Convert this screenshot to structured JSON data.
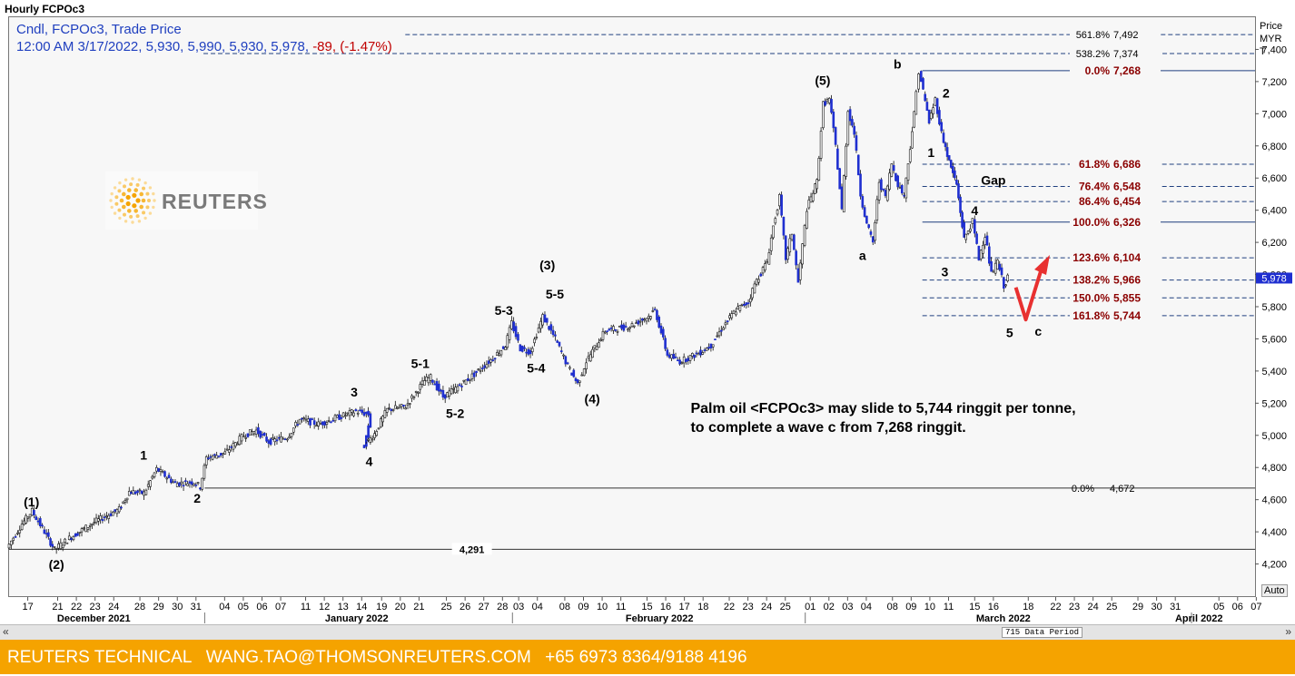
{
  "title": "Hourly FCPOc3",
  "legend": {
    "line1": "Cndl, FCPOc3, Trade Price",
    "datetime": "12:00 AM 3/17/2022,",
    "open": "5,930,",
    "high": "5,990,",
    "low": "5,930,",
    "close": "5,978,",
    "change": "-89,",
    "change_pct": "(-1.47%)"
  },
  "logo_text": "REUTERS",
  "yaxis": {
    "header": [
      "Price",
      "MYR",
      "T"
    ],
    "auto": "Auto"
  },
  "scrollbar": {
    "left": "«",
    "right": "»",
    "data_period": "715 Data Period"
  },
  "footer": {
    "brand": "REUTERS TECHNICAL",
    "email": "WANG.TAO@THOMSONREUTERS.COM",
    "phone": "+65 6973 8364/9188 4196"
  },
  "colors": {
    "candle": "#1f2fd0",
    "fib_text": "#8b0000",
    "arrow": "#e83030",
    "footer": "#f5a300"
  },
  "chart_data": {
    "type": "candlestick",
    "ylim": [
      4000,
      7600
    ],
    "yticks": [
      "4,200",
      "4,400",
      "4,600",
      "4,800",
      "5,000",
      "5,200",
      "5,400",
      "5,600",
      "5,800",
      "6,000",
      "6,200",
      "6,400",
      "6,600",
      "6,800",
      "7,000",
      "7,200",
      "7,400"
    ],
    "last_price": "5,978",
    "xticks": [
      {
        "l": "17",
        "x": 0.015
      },
      {
        "l": "21",
        "x": 0.039
      },
      {
        "l": "22",
        "x": 0.054
      },
      {
        "l": "23",
        "x": 0.069
      },
      {
        "l": "24",
        "x": 0.084
      },
      {
        "l": "28",
        "x": 0.105
      },
      {
        "l": "29",
        "x": 0.12
      },
      {
        "l": "30",
        "x": 0.135
      },
      {
        "l": "31",
        "x": 0.15
      },
      {
        "l": "04",
        "x": 0.173
      },
      {
        "l": "05",
        "x": 0.188
      },
      {
        "l": "06",
        "x": 0.203
      },
      {
        "l": "07",
        "x": 0.218
      },
      {
        "l": "11",
        "x": 0.238
      },
      {
        "l": "12",
        "x": 0.253
      },
      {
        "l": "13",
        "x": 0.268
      },
      {
        "l": "14",
        "x": 0.283
      },
      {
        "l": "19",
        "x": 0.299
      },
      {
        "l": "20",
        "x": 0.314
      },
      {
        "l": "21",
        "x": 0.329
      },
      {
        "l": "25",
        "x": 0.351
      },
      {
        "l": "26",
        "x": 0.366
      },
      {
        "l": "27",
        "x": 0.381
      },
      {
        "l": "28",
        "x": 0.396
      },
      {
        "l": "03",
        "x": 0.409
      },
      {
        "l": "04",
        "x": 0.424
      },
      {
        "l": "08",
        "x": 0.446
      },
      {
        "l": "09",
        "x": 0.461
      },
      {
        "l": "10",
        "x": 0.476
      },
      {
        "l": "11",
        "x": 0.491
      },
      {
        "l": "15",
        "x": 0.512
      },
      {
        "l": "16",
        "x": 0.527
      },
      {
        "l": "17",
        "x": 0.542
      },
      {
        "l": "18",
        "x": 0.557
      },
      {
        "l": "22",
        "x": 0.578
      },
      {
        "l": "23",
        "x": 0.593
      },
      {
        "l": "24",
        "x": 0.608
      },
      {
        "l": "25",
        "x": 0.623
      },
      {
        "l": "01",
        "x": 0.643
      },
      {
        "l": "02",
        "x": 0.658
      },
      {
        "l": "03",
        "x": 0.673
      },
      {
        "l": "04",
        "x": 0.688
      },
      {
        "l": "08",
        "x": 0.709
      },
      {
        "l": "09",
        "x": 0.724
      },
      {
        "l": "10",
        "x": 0.739
      },
      {
        "l": "11",
        "x": 0.754
      },
      {
        "l": "15",
        "x": 0.775
      },
      {
        "l": "16",
        "x": 0.79
      },
      {
        "l": "18",
        "x": 0.818
      },
      {
        "l": "22",
        "x": 0.84
      },
      {
        "l": "23",
        "x": 0.855
      },
      {
        "l": "24",
        "x": 0.87
      },
      {
        "l": "25",
        "x": 0.885
      },
      {
        "l": "29",
        "x": 0.906
      },
      {
        "l": "30",
        "x": 0.921
      },
      {
        "l": "31",
        "x": 0.936
      },
      {
        "l": "05",
        "x": 0.971
      },
      {
        "l": "06",
        "x": 0.986
      },
      {
        "l": "07",
        "x": 1.001
      }
    ],
    "months": [
      {
        "l": "December 2021",
        "x": 0.068
      },
      {
        "l": "January 2022",
        "x": 0.279
      },
      {
        "l": "February 2022",
        "x": 0.522
      },
      {
        "l": "March 2022",
        "x": 0.798
      },
      {
        "l": "April 2022",
        "x": 0.955
      }
    ],
    "month_dividers": [
      0.157,
      0.404,
      0.639,
      0.949
    ],
    "price_path": [
      [
        0,
        4300
      ],
      [
        0.012,
        4450
      ],
      [
        0.02,
        4530
      ],
      [
        0.03,
        4400
      ],
      [
        0.038,
        4290
      ],
      [
        0.05,
        4360
      ],
      [
        0.07,
        4460
      ],
      [
        0.09,
        4540
      ],
      [
        0.098,
        4650
      ],
      [
        0.11,
        4640
      ],
      [
        0.12,
        4790
      ],
      [
        0.135,
        4700
      ],
      [
        0.15,
        4710
      ],
      [
        0.155,
        4680
      ],
      [
        0.16,
        4860
      ],
      [
        0.175,
        4890
      ],
      [
        0.19,
        5000
      ],
      [
        0.2,
        5030
      ],
      [
        0.21,
        4960
      ],
      [
        0.225,
        4990
      ],
      [
        0.235,
        5100
      ],
      [
        0.25,
        5070
      ],
      [
        0.265,
        5110
      ],
      [
        0.28,
        5150
      ],
      [
        0.29,
        5130
      ],
      [
        0.285,
        4920
      ],
      [
        0.295,
        5010
      ],
      [
        0.305,
        5160
      ],
      [
        0.32,
        5180
      ],
      [
        0.335,
        5340
      ],
      [
        0.34,
        5360
      ],
      [
        0.35,
        5240
      ],
      [
        0.36,
        5290
      ],
      [
        0.375,
        5380
      ],
      [
        0.39,
        5480
      ],
      [
        0.4,
        5560
      ],
      [
        0.405,
        5700
      ],
      [
        0.412,
        5540
      ],
      [
        0.42,
        5520
      ],
      [
        0.43,
        5740
      ],
      [
        0.44,
        5600
      ],
      [
        0.45,
        5430
      ],
      [
        0.458,
        5320
      ],
      [
        0.465,
        5460
      ],
      [
        0.48,
        5650
      ],
      [
        0.5,
        5680
      ],
      [
        0.515,
        5740
      ],
      [
        0.52,
        5780
      ],
      [
        0.525,
        5640
      ],
      [
        0.53,
        5500
      ],
      [
        0.54,
        5460
      ],
      [
        0.555,
        5510
      ],
      [
        0.565,
        5560
      ],
      [
        0.575,
        5680
      ],
      [
        0.585,
        5780
      ],
      [
        0.595,
        5830
      ],
      [
        0.6,
        5940
      ],
      [
        0.61,
        6080
      ],
      [
        0.615,
        6300
      ],
      [
        0.62,
        6480
      ],
      [
        0.625,
        6100
      ],
      [
        0.63,
        6260
      ],
      [
        0.635,
        5950
      ],
      [
        0.642,
        6410
      ],
      [
        0.65,
        6580
      ],
      [
        0.655,
        7060
      ],
      [
        0.66,
        7090
      ],
      [
        0.665,
        6800
      ],
      [
        0.67,
        6400
      ],
      [
        0.675,
        7020
      ],
      [
        0.68,
        6880
      ],
      [
        0.685,
        6500
      ],
      [
        0.69,
        6310
      ],
      [
        0.695,
        6200
      ],
      [
        0.7,
        6580
      ],
      [
        0.705,
        6480
      ],
      [
        0.71,
        6690
      ],
      [
        0.715,
        6560
      ],
      [
        0.72,
        6490
      ],
      [
        0.728,
        7000
      ],
      [
        0.732,
        7268
      ],
      [
        0.74,
        6950
      ],
      [
        0.745,
        7090
      ],
      [
        0.75,
        6880
      ],
      [
        0.756,
        6700
      ],
      [
        0.762,
        6560
      ],
      [
        0.768,
        6220
      ],
      [
        0.775,
        6330
      ],
      [
        0.78,
        6100
      ],
      [
        0.785,
        6250
      ],
      [
        0.79,
        6000
      ],
      [
        0.795,
        6080
      ],
      [
        0.8,
        5930
      ],
      [
        0.803,
        5978
      ]
    ]
  },
  "fibs": [
    {
      "label": "561.8%",
      "value": "7,492",
      "y": 7492,
      "x1": 0.318,
      "color": "dark"
    },
    {
      "label": "538.2%",
      "value": "7,374",
      "y": 7374,
      "x1": 0.156,
      "color": "dark"
    },
    {
      "label": "0.0%",
      "value": "7,268",
      "y": 7268,
      "x1": 0.733,
      "color": "red",
      "solid": true
    },
    {
      "label": "61.8%",
      "value": "6,686",
      "y": 6686,
      "x1": 0.733,
      "color": "red"
    },
    {
      "label": "76.4%",
      "value": "6,548",
      "y": 6548,
      "x1": 0.733,
      "color": "red"
    },
    {
      "label": "86.4%",
      "value": "6,454",
      "y": 6454,
      "x1": 0.733,
      "color": "red"
    },
    {
      "label": "100.0%",
      "value": "6,326",
      "y": 6326,
      "x1": 0.733,
      "color": "red",
      "solid": true
    },
    {
      "label": "123.6%",
      "value": "6,104",
      "y": 6104,
      "x1": 0.733,
      "color": "red"
    },
    {
      "label": "138.2%",
      "value": "5,966",
      "y": 5966,
      "x1": 0.733,
      "color": "red"
    },
    {
      "label": "150.0%",
      "value": "5,855",
      "y": 5855,
      "x1": 0.733,
      "color": "red"
    },
    {
      "label": "161.8%",
      "value": "5,744",
      "y": 5744,
      "x1": 0.733,
      "color": "red"
    }
  ],
  "hlines": [
    {
      "label": "0.0%",
      "value": "4,672",
      "y": 4672,
      "x1": 0.157
    },
    {
      "label": "",
      "value": "4,291",
      "y": 4291,
      "x1": 0.0
    }
  ],
  "wave_labels": [
    {
      "t": "(1)",
      "x": 0.018,
      "y": 4560
    },
    {
      "t": "(2)",
      "x": 0.038,
      "y": 4170
    },
    {
      "t": "1",
      "x": 0.108,
      "y": 4850
    },
    {
      "t": "2",
      "x": 0.151,
      "y": 4580
    },
    {
      "t": "3",
      "x": 0.277,
      "y": 5240
    },
    {
      "t": "4",
      "x": 0.289,
      "y": 4810
    },
    {
      "t": "5-1",
      "x": 0.33,
      "y": 5420
    },
    {
      "t": "5-2",
      "x": 0.358,
      "y": 5110
    },
    {
      "t": "5-3",
      "x": 0.397,
      "y": 5750
    },
    {
      "t": "(3)",
      "x": 0.432,
      "y": 6030
    },
    {
      "t": "5-5",
      "x": 0.438,
      "y": 5850
    },
    {
      "t": "5-4",
      "x": 0.423,
      "y": 5390
    },
    {
      "t": "(4)",
      "x": 0.468,
      "y": 5200
    },
    {
      "t": "(5)",
      "x": 0.653,
      "y": 7180
    },
    {
      "t": "a",
      "x": 0.685,
      "y": 6090
    },
    {
      "t": "b",
      "x": 0.713,
      "y": 7280
    },
    {
      "t": "2",
      "x": 0.752,
      "y": 7100
    },
    {
      "t": "1",
      "x": 0.74,
      "y": 6730
    },
    {
      "t": "Gap",
      "x": 0.79,
      "y": 6560
    },
    {
      "t": "4",
      "x": 0.775,
      "y": 6370
    },
    {
      "t": "3",
      "x": 0.751,
      "y": 5990
    },
    {
      "t": "5",
      "x": 0.803,
      "y": 5610
    },
    {
      "t": "c",
      "x": 0.826,
      "y": 5620
    }
  ],
  "note": {
    "line1": "Palm oil <FCPOc3> may slide to 5,744 ringgit per tonne,",
    "line2": "to complete a wave c from 7,268 ringgit.",
    "x": 0.547,
    "y1": 5140,
    "y2": 5020
  }
}
